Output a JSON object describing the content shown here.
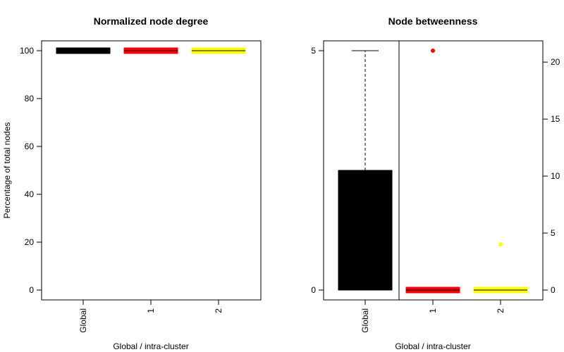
{
  "chart_data": [
    {
      "type": "boxplot",
      "title": "Normalized node degree",
      "xlabel": "Global / intra-cluster",
      "ylabel": "Percentage of total nodes",
      "ylim": [
        0,
        100
      ],
      "yticks": [
        0,
        20,
        40,
        60,
        80,
        100
      ],
      "grid": false,
      "categories": [
        "Global",
        "1",
        "2"
      ],
      "colors": [
        "#000000",
        "#ff0000",
        "#ffff00"
      ],
      "boxes": [
        {
          "category": "Global",
          "min": 100,
          "q1": 100,
          "median": 100,
          "q3": 100,
          "max": 100,
          "outliers": []
        },
        {
          "category": "1",
          "min": 100,
          "q1": 100,
          "median": 100,
          "q3": 100,
          "max": 100,
          "outliers": []
        },
        {
          "category": "2",
          "min": 100,
          "q1": 100,
          "median": 100,
          "q3": 100,
          "max": 100,
          "outliers": []
        }
      ]
    },
    {
      "type": "boxplot",
      "title": "Node betweenness",
      "xlabel": "Global / intra-cluster",
      "ylabel": "",
      "grid": false,
      "categories": [
        "Global",
        "1",
        "2"
      ],
      "colors": [
        "#000000",
        "#ff0000",
        "#ffff00"
      ],
      "left_axis": {
        "ylim": [
          0,
          5
        ],
        "yticks": [
          0,
          5
        ],
        "applies_to": [
          "Global"
        ]
      },
      "right_axis": {
        "ylim": [
          0,
          21
        ],
        "yticks": [
          0,
          5,
          10,
          15,
          20
        ],
        "applies_to": [
          "1",
          "2"
        ]
      },
      "boxes": [
        {
          "category": "Global",
          "axis": "left",
          "min": 0,
          "q1": 0,
          "median": 0,
          "q3": 2.5,
          "max": 5,
          "outliers": []
        },
        {
          "category": "1",
          "axis": "right",
          "min": 0,
          "q1": 0,
          "median": 0,
          "q3": 0,
          "max": 0,
          "outliers": [
            21
          ]
        },
        {
          "category": "2",
          "axis": "right",
          "min": 0,
          "q1": 0,
          "median": 0,
          "q3": 0,
          "max": 0,
          "outliers": [
            4
          ]
        }
      ]
    }
  ]
}
